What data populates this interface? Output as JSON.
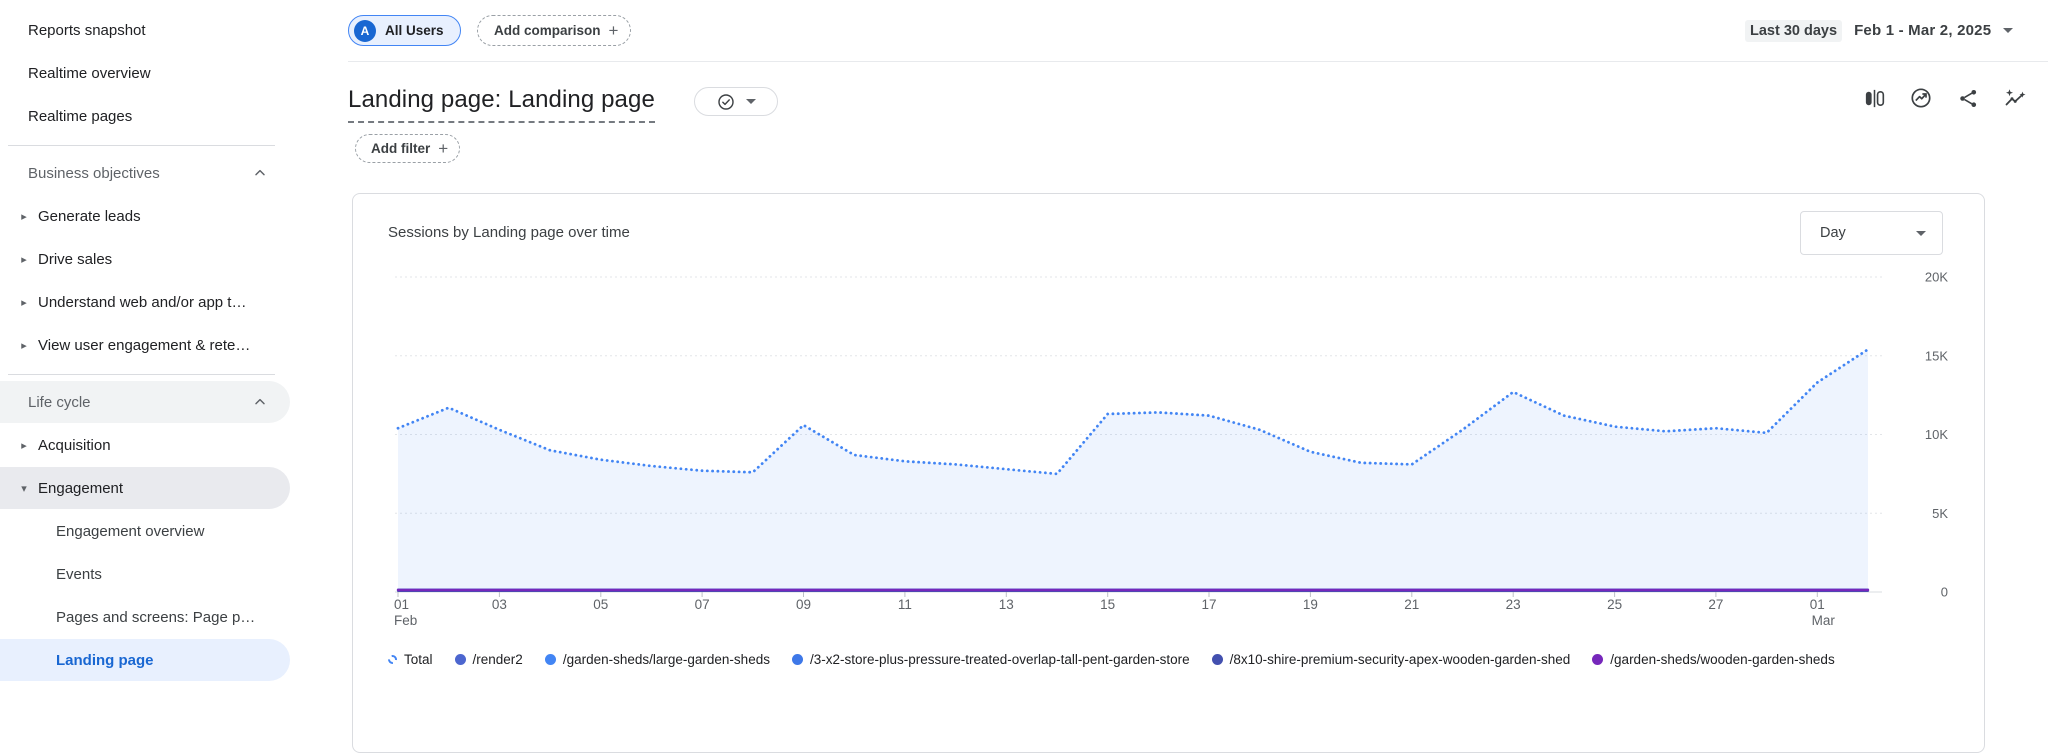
{
  "sidebar": {
    "items": [
      {
        "label": "Reports snapshot",
        "type": "link"
      },
      {
        "label": "Realtime overview",
        "type": "link"
      },
      {
        "label": "Realtime pages",
        "type": "link"
      },
      {
        "type": "divider"
      },
      {
        "label": "Business objectives",
        "type": "section",
        "state": "expanded"
      },
      {
        "label": "Generate leads",
        "type": "collection",
        "state": "collapsed"
      },
      {
        "label": "Drive sales",
        "type": "collection",
        "state": "collapsed"
      },
      {
        "label": "Understand web and/or app t…",
        "type": "collection",
        "state": "collapsed"
      },
      {
        "label": "View user engagement & rete…",
        "type": "collection",
        "state": "collapsed"
      },
      {
        "type": "divider"
      },
      {
        "label": "Life cycle",
        "type": "section",
        "state": "expanded",
        "highlighted": true
      },
      {
        "label": "Acquisition",
        "type": "collection",
        "state": "collapsed"
      },
      {
        "label": "Engagement",
        "type": "collection",
        "state": "expanded",
        "highlighted": true
      },
      {
        "label": "Engagement overview",
        "type": "subitem"
      },
      {
        "label": "Events",
        "type": "subitem"
      },
      {
        "label": "Pages and screens: Page p…",
        "type": "subitem"
      },
      {
        "label": "Landing page",
        "type": "subitem",
        "selected": true
      }
    ]
  },
  "comparison_bar": {
    "all_users": {
      "avatar": "A",
      "label": "All Users"
    },
    "add_comparison_label": "Add comparison",
    "date_range": {
      "preset": "Last 30 days",
      "range": "Feb 1 - Mar 2, 2025"
    }
  },
  "header": {
    "title": "Landing page: Landing page",
    "add_filter_label": "Add filter",
    "icons": [
      "comparison-columns",
      "insights-compass",
      "share",
      "spark-insights"
    ]
  },
  "colors": {
    "accent_blue": "#1a73e8",
    "series_blue": "#4285f4",
    "selected_bg": "#e8f0fe",
    "border": "#dadce0",
    "text_gray": "#5f6368"
  },
  "chart_data": {
    "type": "area",
    "title": "Sessions by Landing page over time",
    "interval": "Day",
    "ylabel": "Sessions",
    "ylim": [
      0,
      20000
    ],
    "grid": "horizontal-dotted",
    "legend_position": "bottom",
    "y_ticks": [
      {
        "value": 20000,
        "label": "20K"
      },
      {
        "value": 15000,
        "label": "15K"
      },
      {
        "value": 10000,
        "label": "10K"
      },
      {
        "value": 5000,
        "label": "5K"
      },
      {
        "value": 0,
        "label": "0"
      }
    ],
    "x_dates": [
      "Feb 1",
      "Feb 2",
      "Feb 3",
      "Feb 4",
      "Feb 5",
      "Feb 6",
      "Feb 7",
      "Feb 8",
      "Feb 9",
      "Feb 10",
      "Feb 11",
      "Feb 12",
      "Feb 13",
      "Feb 14",
      "Feb 15",
      "Feb 16",
      "Feb 17",
      "Feb 18",
      "Feb 19",
      "Feb 20",
      "Feb 21",
      "Feb 22",
      "Feb 23",
      "Feb 24",
      "Feb 25",
      "Feb 26",
      "Feb 27",
      "Feb 28",
      "Mar 1",
      "Mar 2"
    ],
    "x_ticks": [
      {
        "i": 0,
        "day": "01",
        "month": "Feb"
      },
      {
        "i": 2,
        "day": "03"
      },
      {
        "i": 4,
        "day": "05"
      },
      {
        "i": 6,
        "day": "07"
      },
      {
        "i": 8,
        "day": "09"
      },
      {
        "i": 10,
        "day": "11"
      },
      {
        "i": 12,
        "day": "13"
      },
      {
        "i": 14,
        "day": "15"
      },
      {
        "i": 16,
        "day": "17"
      },
      {
        "i": 18,
        "day": "19"
      },
      {
        "i": 20,
        "day": "21"
      },
      {
        "i": 22,
        "day": "23"
      },
      {
        "i": 24,
        "day": "25"
      },
      {
        "i": 26,
        "day": "27"
      },
      {
        "i": 28,
        "day": "01",
        "month": "Mar"
      }
    ],
    "series": [
      {
        "name": "Total",
        "color": "#4285f4",
        "line_style": "dotted",
        "area_fill": true,
        "values": [
          10400,
          11700,
          10300,
          9000,
          8400,
          8000,
          7700,
          7600,
          10600,
          8700,
          8300,
          8100,
          7800,
          7500,
          11300,
          11400,
          11200,
          10300,
          8900,
          8200,
          8100,
          10300,
          12700,
          11200,
          10500,
          10200,
          10400,
          10100,
          13300,
          15400
        ]
      },
      {
        "name": "/render2",
        "color": "#4c66cf",
        "line_style": "solid",
        "values": [
          150,
          150,
          150,
          150,
          150,
          150,
          150,
          150,
          150,
          150,
          150,
          150,
          150,
          150,
          150,
          150,
          150,
          150,
          150,
          150,
          150,
          150,
          150,
          150,
          150,
          150,
          150,
          150,
          150,
          150
        ]
      },
      {
        "name": "/garden-sheds/large-garden-sheds",
        "color": "#4285f4",
        "line_style": "solid",
        "values": [
          120,
          120,
          120,
          120,
          120,
          120,
          120,
          120,
          120,
          120,
          120,
          120,
          120,
          120,
          120,
          120,
          120,
          120,
          120,
          120,
          120,
          120,
          120,
          120,
          120,
          120,
          120,
          120,
          120,
          120
        ]
      },
      {
        "name": "/3-x2-store-plus-pressure-treated-overlap-tall-pent-garden-store",
        "color": "#3e78e8",
        "line_style": "solid",
        "values": [
          90,
          90,
          90,
          90,
          90,
          90,
          90,
          90,
          90,
          90,
          90,
          90,
          90,
          90,
          90,
          90,
          90,
          90,
          90,
          90,
          90,
          90,
          90,
          90,
          90,
          90,
          90,
          90,
          90,
          90
        ]
      },
      {
        "name": "/8x10-shire-premium-security-apex-wooden-garden-shed",
        "color": "#4350af",
        "line_style": "solid",
        "values": [
          70,
          70,
          70,
          70,
          70,
          70,
          70,
          70,
          70,
          70,
          70,
          70,
          70,
          70,
          70,
          70,
          70,
          70,
          70,
          70,
          70,
          70,
          70,
          70,
          70,
          70,
          70,
          70,
          70,
          70
        ]
      },
      {
        "name": "/garden-sheds/wooden-garden-sheds",
        "color": "#7627bb",
        "line_style": "solid",
        "values": [
          130,
          130,
          130,
          130,
          130,
          130,
          130,
          130,
          130,
          130,
          130,
          130,
          130,
          130,
          130,
          130,
          130,
          130,
          130,
          130,
          130,
          130,
          130,
          130,
          130,
          130,
          130,
          130,
          130,
          130
        ]
      }
    ]
  }
}
